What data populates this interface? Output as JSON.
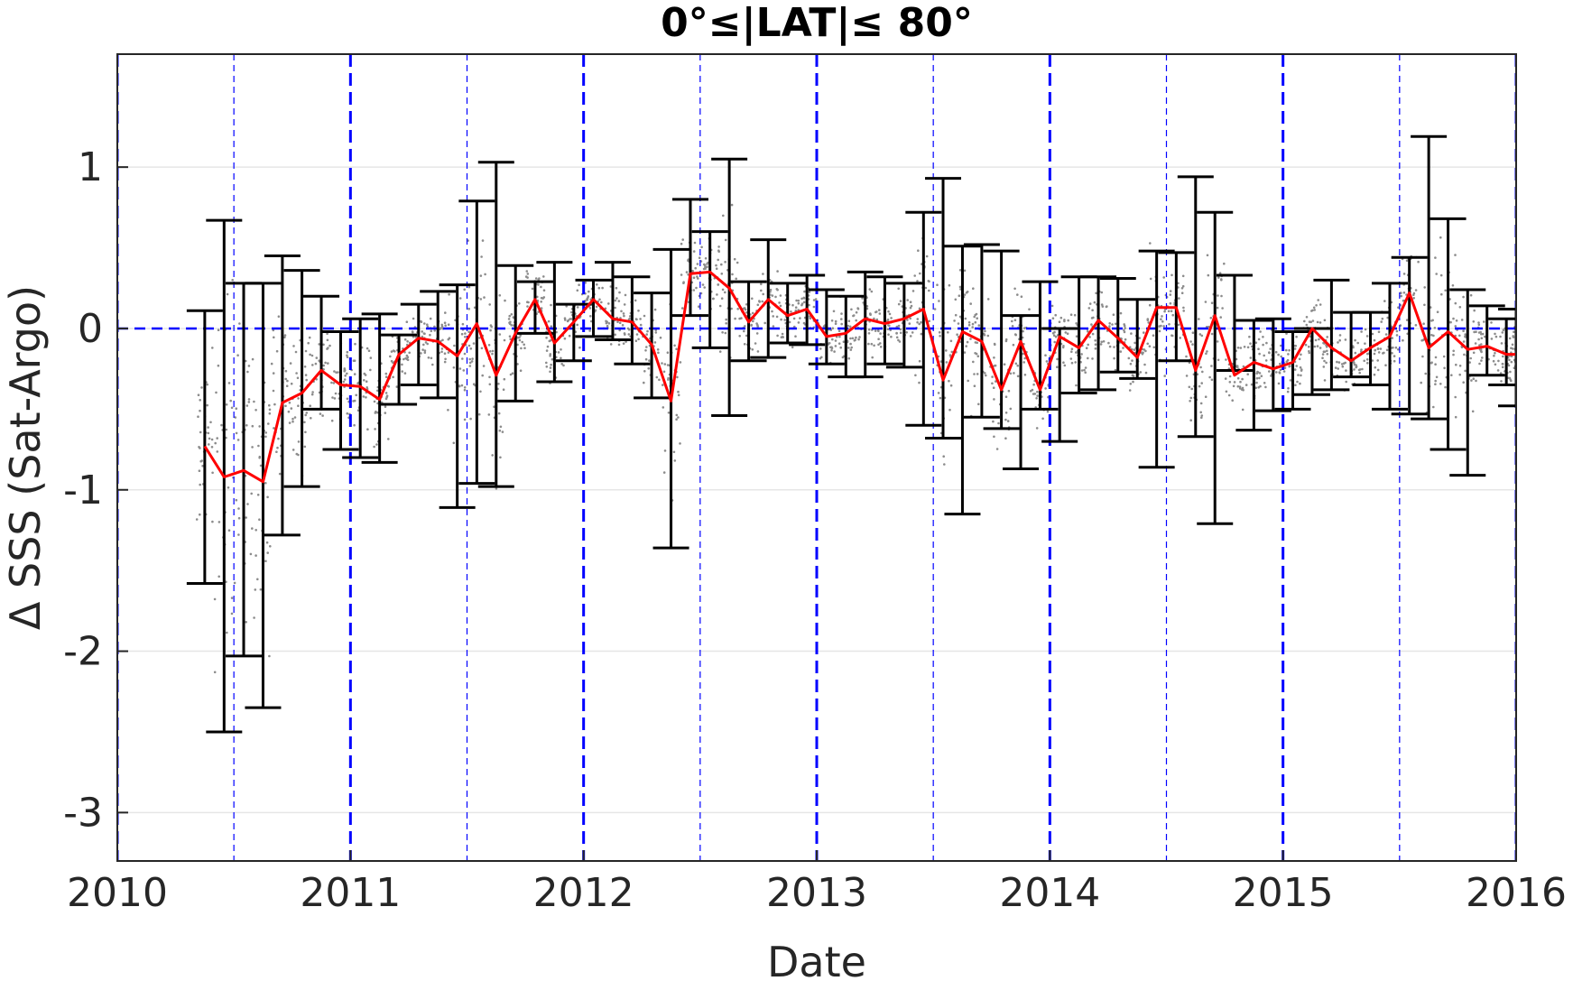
{
  "chart_data": {
    "type": "line",
    "title": "0°≤|LAT|≤ 80°",
    "xlabel": "Date",
    "ylabel": "Δ SSS (Sat-Argo)",
    "xlim": [
      2010,
      2016
    ],
    "ylim": [
      -3.3,
      1.7
    ],
    "xticks": [
      2010,
      2011,
      2012,
      2013,
      2014,
      2015,
      2016
    ],
    "xtick_labels": [
      "2010",
      "2011",
      "2012",
      "2013",
      "2014",
      "2015",
      "2016"
    ],
    "yticks": [
      -3,
      -2,
      -1,
      0,
      1
    ],
    "ytick_labels": [
      "-3",
      "-2",
      "-1",
      "0",
      "1"
    ],
    "grid": true,
    "colors": {
      "mean_line": "#ff0000",
      "error_bars": "#000000",
      "reference_lines": "#0000ff",
      "scatter": "#8c8c8c"
    },
    "reference_lines": {
      "horizontal_zero": 0,
      "year_boundaries": [
        2010,
        2011,
        2012,
        2013,
        2014,
        2015,
        2016
      ],
      "mid_year": [
        2010.5,
        2011.5,
        2012.5,
        2013.5,
        2014.5,
        2015.5
      ]
    },
    "series": [
      {
        "type": "line_with_error_bars",
        "x": [
          2010.375,
          2010.458,
          2010.542,
          2010.625,
          2010.708,
          2010.792,
          2010.875,
          2010.958,
          2011.042,
          2011.125,
          2011.208,
          2011.292,
          2011.375,
          2011.458,
          2011.542,
          2011.625,
          2011.708,
          2011.792,
          2011.875,
          2011.958,
          2012.042,
          2012.125,
          2012.208,
          2012.292,
          2012.375,
          2012.458,
          2012.542,
          2012.625,
          2012.708,
          2012.792,
          2012.875,
          2012.958,
          2013.042,
          2013.125,
          2013.208,
          2013.292,
          2013.375,
          2013.458,
          2013.542,
          2013.625,
          2013.708,
          2013.792,
          2013.875,
          2013.958,
          2014.042,
          2014.125,
          2014.208,
          2014.292,
          2014.375,
          2014.458,
          2014.542,
          2014.625,
          2014.708,
          2014.792,
          2014.875,
          2014.958,
          2015.042,
          2015.125,
          2015.208,
          2015.292,
          2015.375,
          2015.458,
          2015.542,
          2015.625,
          2015.708,
          2015.792,
          2015.875,
          2015.958,
          2016.0
        ],
        "y": [
          -0.73,
          -0.92,
          -0.88,
          -0.95,
          -0.46,
          -0.4,
          -0.26,
          -0.35,
          -0.36,
          -0.44,
          -0.16,
          -0.06,
          -0.08,
          -0.17,
          0.03,
          -0.29,
          -0.03,
          0.18,
          -0.09,
          0.04,
          0.18,
          0.06,
          0.04,
          -0.1,
          -0.45,
          0.34,
          0.35,
          0.25,
          0.04,
          0.18,
          0.08,
          0.12,
          -0.05,
          -0.03,
          0.06,
          0.03,
          0.06,
          0.12,
          -0.32,
          -0.02,
          -0.08,
          -0.38,
          -0.08,
          -0.38,
          -0.05,
          -0.12,
          0.05,
          -0.06,
          -0.18,
          0.13,
          0.13,
          -0.26,
          0.08,
          -0.29,
          -0.21,
          -0.25,
          -0.21,
          0.0,
          -0.12,
          -0.2,
          -0.12,
          -0.05,
          0.22,
          -0.12,
          -0.02,
          -0.13,
          -0.11,
          -0.16,
          -0.16
        ],
        "err_low": [
          -1.58,
          -2.5,
          -2.03,
          -2.35,
          -1.28,
          -0.98,
          -0.5,
          -0.75,
          -0.8,
          -0.83,
          -0.47,
          -0.35,
          -0.43,
          -1.11,
          -0.96,
          -0.98,
          -0.45,
          -0.03,
          -0.33,
          -0.2,
          -0.05,
          -0.07,
          -0.22,
          -0.43,
          -1.36,
          0.08,
          -0.12,
          -0.54,
          -0.2,
          -0.18,
          -0.09,
          -0.1,
          -0.22,
          -0.3,
          -0.3,
          -0.22,
          -0.24,
          -0.6,
          -0.68,
          -1.15,
          -0.55,
          -0.62,
          -0.87,
          -0.5,
          -0.7,
          -0.4,
          -0.38,
          -0.27,
          -0.31,
          -0.86,
          -0.2,
          -0.67,
          -1.21,
          -0.26,
          -0.63,
          -0.51,
          -0.5,
          -0.41,
          -0.38,
          -0.3,
          -0.35,
          -0.5,
          -0.53,
          -0.56,
          -0.75,
          -0.91,
          -0.29,
          -0.35,
          -0.48
        ],
        "err_high": [
          0.11,
          0.67,
          0.28,
          0.28,
          0.45,
          0.36,
          0.2,
          -0.02,
          0.06,
          0.09,
          -0.04,
          0.15,
          0.23,
          0.27,
          0.79,
          1.03,
          0.39,
          0.29,
          0.41,
          0.15,
          0.3,
          0.41,
          0.32,
          0.22,
          0.49,
          0.8,
          0.6,
          1.05,
          0.29,
          0.55,
          0.28,
          0.33,
          0.24,
          0.2,
          0.35,
          0.32,
          0.28,
          0.72,
          0.93,
          0.51,
          0.52,
          0.48,
          0.08,
          0.29,
          0.0,
          0.32,
          0.32,
          0.31,
          0.18,
          0.48,
          0.47,
          0.94,
          0.72,
          0.33,
          0.05,
          0.06,
          -0.02,
          0.0,
          0.3,
          0.1,
          0.1,
          0.28,
          0.44,
          1.19,
          0.68,
          0.24,
          0.14,
          0.06,
          0.12
        ]
      }
    ]
  }
}
